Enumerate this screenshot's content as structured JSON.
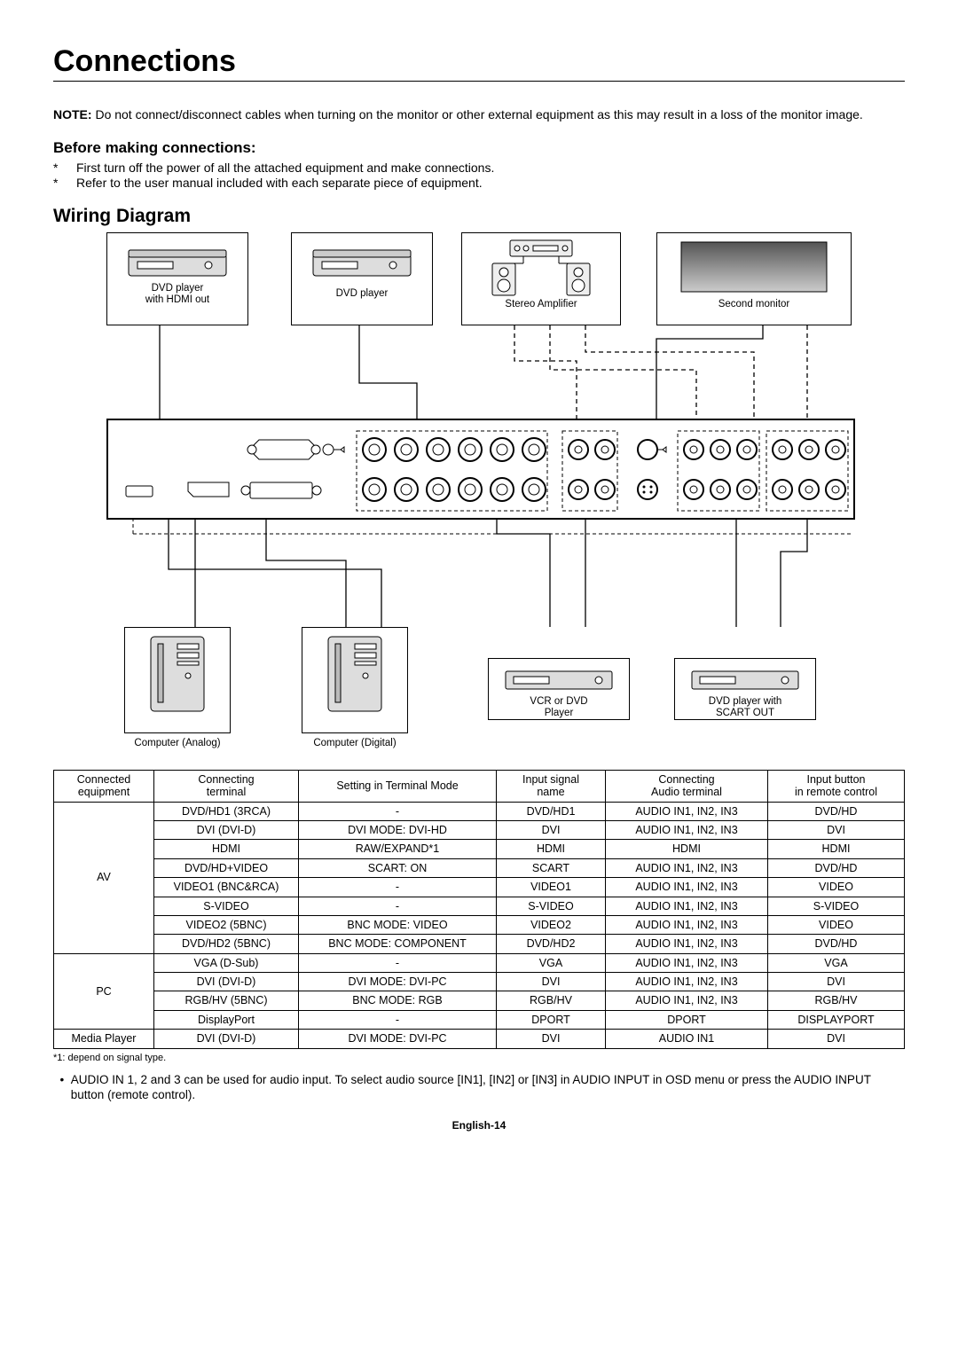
{
  "title": "Connections",
  "note_label": "NOTE:",
  "note_text": "Do not connect/disconnect cables when turning on the monitor or other external equipment as this may result in a loss of the monitor image.",
  "before_heading": "Before making connections:",
  "bullets": [
    "First turn off the power of all the attached equipment and make connections.",
    "Refer to the user manual included with each separate piece of equipment."
  ],
  "wiring_heading": "Wiring Diagram",
  "devices": {
    "dvd_hdmi": "DVD player\nwith HDMI out",
    "dvd": "DVD player",
    "stereo": "Stereo Amplifier",
    "second_monitor": "Second monitor",
    "comp_analog": "Computer (Analog)",
    "comp_digital": "Computer (Digital)",
    "vcr_dvd": "VCR or DVD\nPlayer",
    "dvd_scart": "DVD player with\nSCART OUT"
  },
  "table": {
    "headers": [
      "Connected\nequipment",
      "Connecting\nterminal",
      "Setting in Terminal Mode",
      "Input signal\nname",
      "Connecting\nAudio terminal",
      "Input button\nin remote control"
    ],
    "groups": [
      {
        "equip": "AV",
        "rows": [
          [
            "DVD/HD1 (3RCA)",
            "-",
            "DVD/HD1",
            "AUDIO IN1, IN2, IN3",
            "DVD/HD"
          ],
          [
            "DVI (DVI-D)",
            "DVI MODE: DVI-HD",
            "DVI",
            "AUDIO IN1, IN2, IN3",
            "DVI"
          ],
          [
            "HDMI",
            "RAW/EXPAND*1",
            "HDMI",
            "HDMI",
            "HDMI"
          ],
          [
            "DVD/HD+VIDEO",
            "SCART: ON",
            "SCART",
            "AUDIO IN1, IN2, IN3",
            "DVD/HD"
          ],
          [
            "VIDEO1 (BNC&RCA)",
            "-",
            "VIDEO1",
            "AUDIO IN1, IN2, IN3",
            "VIDEO"
          ],
          [
            "S-VIDEO",
            "-",
            "S-VIDEO",
            "AUDIO IN1, IN2, IN3",
            "S-VIDEO"
          ],
          [
            "VIDEO2 (5BNC)",
            "BNC MODE: VIDEO",
            "VIDEO2",
            "AUDIO IN1, IN2, IN3",
            "VIDEO"
          ],
          [
            "DVD/HD2 (5BNC)",
            "BNC MODE: COMPONENT",
            "DVD/HD2",
            "AUDIO IN1, IN2, IN3",
            "DVD/HD"
          ]
        ]
      },
      {
        "equip": "PC",
        "rows": [
          [
            "VGA (D-Sub)",
            "-",
            "VGA",
            "AUDIO IN1, IN2, IN3",
            "VGA"
          ],
          [
            "DVI (DVI-D)",
            "DVI MODE: DVI-PC",
            "DVI",
            "AUDIO IN1, IN2, IN3",
            "DVI"
          ],
          [
            "RGB/HV (5BNC)",
            "BNC MODE: RGB",
            "RGB/HV",
            "AUDIO IN1, IN2, IN3",
            "RGB/HV"
          ],
          [
            "DisplayPort",
            "-",
            "DPORT",
            "DPORT",
            "DISPLAYPORT"
          ]
        ]
      },
      {
        "equip": "Media Player",
        "rows": [
          [
            "DVI (DVI-D)",
            "DVI MODE: DVI-PC",
            "DVI",
            "AUDIO IN1",
            "DVI"
          ]
        ]
      }
    ]
  },
  "footnote": "*1: depend on signal type.",
  "final_bullet": "AUDIO IN 1, 2 and 3 can be used for audio input. To select audio source [IN1], [IN2] or [IN3] in AUDIO INPUT in OSD menu or press the AUDIO INPUT button (remote control).",
  "page_footer": "English-14",
  "diagram_style": {
    "line_color": "#000000",
    "dash": "5,4",
    "arrow_size": 7,
    "panel_bg": "#ffffff"
  }
}
